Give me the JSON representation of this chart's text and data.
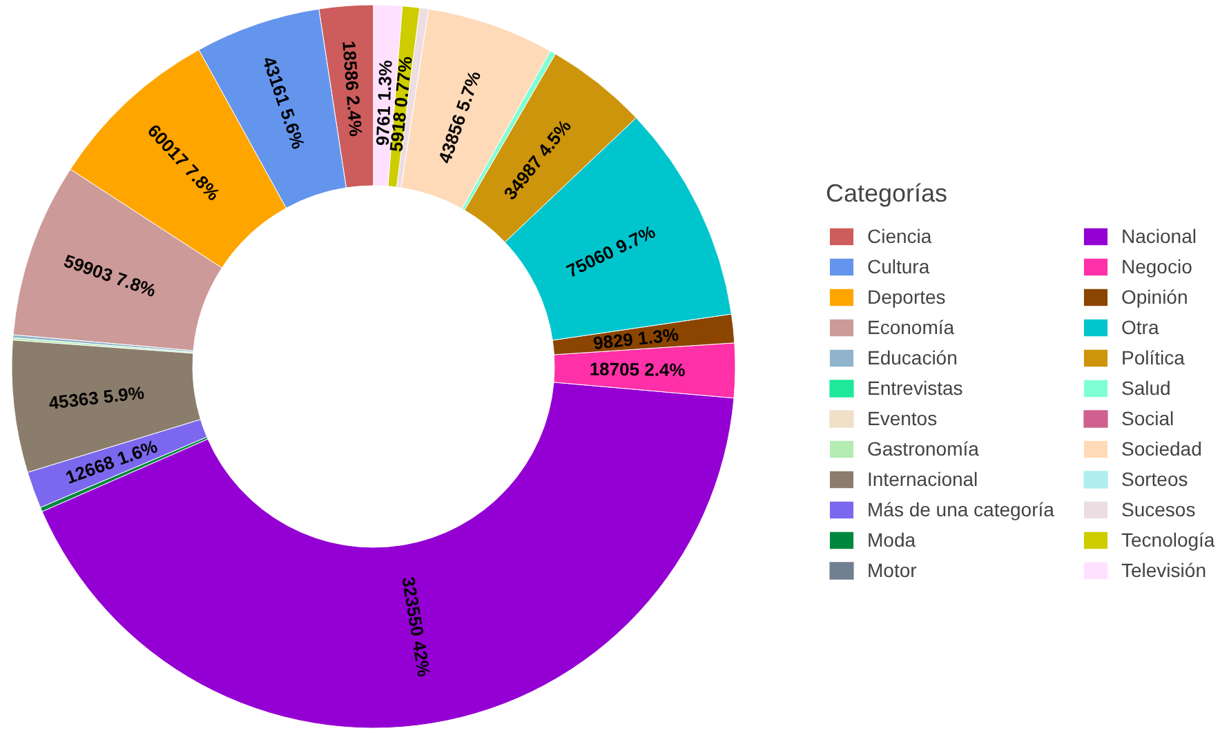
{
  "chart_data": {
    "type": "donut",
    "legend_title": "Categorías",
    "legend": "right",
    "categories": [
      "Ciencia",
      "Cultura",
      "Deportes",
      "Economía",
      "Educación",
      "Entrevistas",
      "Eventos",
      "Gastronomía",
      "Internacional",
      "Más de una categoría",
      "Moda",
      "Motor",
      "Nacional",
      "Negocio",
      "Opinión",
      "Otra",
      "Política",
      "Salud",
      "Social",
      "Sociedad",
      "Sorteos",
      "Sucesos",
      "Tecnología",
      "Televisión"
    ],
    "values": [
      18586,
      43161,
      60017,
      59903,
      1000,
      null,
      null,
      800,
      45363,
      12668,
      1500,
      null,
      323550,
      18705,
      9829,
      75060,
      34987,
      2000,
      null,
      43856,
      null,
      3000,
      5918,
      9761
    ],
    "colors": [
      "#cd5c5c",
      "#6495ed",
      "#ffa500",
      "#cc9a98",
      "#8fb4cc",
      "#1ee89a",
      "#f0e0c8",
      "#b4ecb4",
      "#8b7d6b",
      "#7b68ee",
      "#00873e",
      "#708090",
      "#9400d3",
      "#ff30a8",
      "#8b4500",
      "#00c5cd",
      "#cd950c",
      "#7fffd4",
      "#d06090",
      "#ffdab9",
      "#aeeeee",
      "#ecdde2",
      "#cdcd00",
      "#ffe1ff"
    ],
    "value_labels": [
      "18586 2.4%",
      "43161 5.6%",
      "60017 7.8%",
      "59903 7.8%",
      null,
      null,
      null,
      null,
      "45363 5.9%",
      "12668 1.6%",
      null,
      null,
      "323550 42%",
      "18705 2.4%",
      "9829 1.3%",
      "75060 9.7%",
      "34987 4.5%",
      null,
      null,
      "43856 5.7%",
      null,
      null,
      "5918 0.77%",
      "9761 1.3%"
    ]
  }
}
